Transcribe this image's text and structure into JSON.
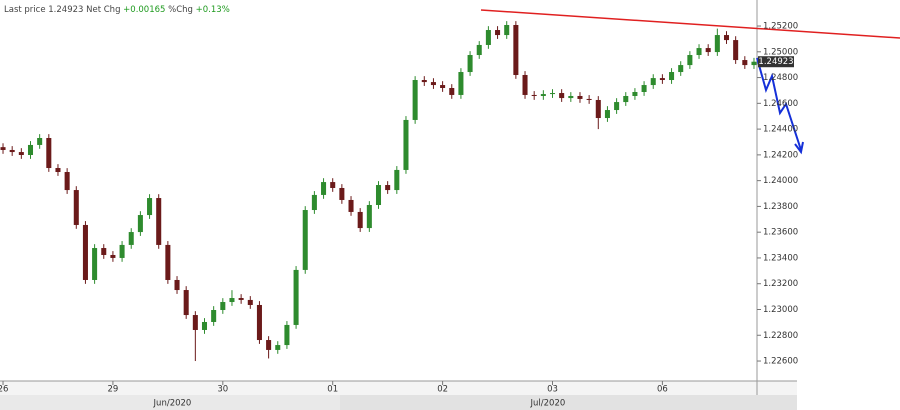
{
  "header": {
    "last_price_label": "Last price",
    "last_price": "1.24923",
    "net_chg_label": "Net Chg",
    "net_chg": "+0.00165",
    "pct_chg_label": "%Chg",
    "pct_chg": "+0.13%"
  },
  "chart_data": {
    "type": "candlestick",
    "up_color": "#2e8b2e",
    "down_color": "#6b1a1a",
    "candles": [
      [
        1.2426,
        1.2429,
        1.24208,
        1.24238
      ],
      [
        1.24238,
        1.24268,
        1.24192,
        1.24222
      ],
      [
        1.24222,
        1.24252,
        1.24169,
        1.24199
      ],
      [
        1.24199,
        1.24307,
        1.24169,
        1.24277
      ],
      [
        1.24277,
        1.24361,
        1.24247,
        1.24331
      ],
      [
        1.24331,
        1.24361,
        1.24068,
        1.24098
      ],
      [
        1.24098,
        1.24128,
        1.24037,
        1.24067
      ],
      [
        1.24067,
        1.24097,
        1.23897,
        1.23927
      ],
      [
        1.23927,
        1.23957,
        1.23626,
        1.23656
      ],
      [
        1.23656,
        1.23686,
        1.23199,
        1.23229
      ],
      [
        1.23229,
        1.23507,
        1.23199,
        1.23477
      ],
      [
        1.23477,
        1.23507,
        1.23393,
        1.23423
      ],
      [
        1.23423,
        1.23453,
        1.2337,
        1.234
      ],
      [
        1.234,
        1.23531,
        1.2337,
        1.23501
      ],
      [
        1.23501,
        1.23631,
        1.23471,
        1.23601
      ],
      [
        1.23601,
        1.23763,
        1.23571,
        1.23733
      ],
      [
        1.23733,
        1.23895,
        1.23703,
        1.23865
      ],
      [
        1.23865,
        1.23895,
        1.23471,
        1.23501
      ],
      [
        1.23501,
        1.23531,
        1.23199,
        1.23229
      ],
      [
        1.23229,
        1.23259,
        1.23121,
        1.23151
      ],
      [
        1.23151,
        1.23181,
        1.22927,
        1.22957
      ],
      [
        1.22957,
        1.22987,
        1.226,
        1.22841
      ],
      [
        1.22841,
        1.22933,
        1.22811,
        1.22903
      ],
      [
        1.22903,
        1.23026,
        1.22873,
        1.22996
      ],
      [
        1.22996,
        1.23088,
        1.22966,
        1.23058
      ],
      [
        1.23058,
        1.2315,
        1.23028,
        1.23089
      ],
      [
        1.23089,
        1.23119,
        1.23044,
        1.23074
      ],
      [
        1.23074,
        1.23104,
        1.23005,
        1.23035
      ],
      [
        1.23035,
        1.23065,
        1.22733,
        1.22763
      ],
      [
        1.22763,
        1.22793,
        1.2262,
        1.22686
      ],
      [
        1.22686,
        1.22754,
        1.22656,
        1.22724
      ],
      [
        1.22724,
        1.2291,
        1.22694,
        1.2288
      ],
      [
        1.2288,
        1.23337,
        1.2285,
        1.23307
      ],
      [
        1.23307,
        1.23802,
        1.23277,
        1.23772
      ],
      [
        1.23772,
        1.23919,
        1.23742,
        1.23889
      ],
      [
        1.23889,
        1.24019,
        1.23859,
        1.23989
      ],
      [
        1.23989,
        1.24019,
        1.23913,
        1.23943
      ],
      [
        1.23943,
        1.23973,
        1.2382,
        1.2385
      ],
      [
        1.2385,
        1.2388,
        1.23727,
        1.23757
      ],
      [
        1.23757,
        1.23787,
        1.23602,
        1.23632
      ],
      [
        1.23632,
        1.23841,
        1.23602,
        1.23811
      ],
      [
        1.23811,
        1.23996,
        1.23781,
        1.23966
      ],
      [
        1.23966,
        1.23996,
        1.23897,
        1.23927
      ],
      [
        1.23927,
        1.24113,
        1.23897,
        1.24083
      ],
      [
        1.24083,
        1.24501,
        1.24053,
        1.24471
      ],
      [
        1.24471,
        1.24811,
        1.24441,
        1.24781
      ],
      [
        1.24781,
        1.24811,
        1.24735,
        1.24765
      ],
      [
        1.24765,
        1.24795,
        1.24712,
        1.24742
      ],
      [
        1.24742,
        1.24772,
        1.24689,
        1.24719
      ],
      [
        1.24719,
        1.24749,
        1.24635,
        1.24665
      ],
      [
        1.24665,
        1.24873,
        1.24635,
        1.24843
      ],
      [
        1.24843,
        1.25005,
        1.24813,
        1.24975
      ],
      [
        1.24975,
        1.25083,
        1.24945,
        1.25053
      ],
      [
        1.25053,
        1.25199,
        1.25023,
        1.25169
      ],
      [
        1.25169,
        1.25199,
        1.251,
        1.2513
      ],
      [
        1.2513,
        1.25238,
        1.251,
        1.25208
      ],
      [
        1.25208,
        1.25238,
        1.2479,
        1.2482
      ],
      [
        1.2482,
        1.2485,
        1.24635,
        1.24665
      ],
      [
        1.24665,
        1.24695,
        1.24627,
        1.24657
      ],
      [
        1.24657,
        1.24702,
        1.24627,
        1.24672
      ],
      [
        1.24672,
        1.2471,
        1.24642,
        1.2468
      ],
      [
        1.2468,
        1.2471,
        1.24611,
        1.24641
      ],
      [
        1.24641,
        1.24687,
        1.24611,
        1.24657
      ],
      [
        1.24657,
        1.24687,
        1.24604,
        1.24634
      ],
      [
        1.24634,
        1.24664,
        1.24596,
        1.24626
      ],
      [
        1.24626,
        1.24656,
        1.244,
        1.24486
      ],
      [
        1.24486,
        1.24578,
        1.24456,
        1.24548
      ],
      [
        1.24548,
        1.2464,
        1.24518,
        1.2461
      ],
      [
        1.2461,
        1.24687,
        1.2458,
        1.24657
      ],
      [
        1.24657,
        1.24718,
        1.24627,
        1.24688
      ],
      [
        1.24688,
        1.24772,
        1.24658,
        1.24742
      ],
      [
        1.24742,
        1.24826,
        1.24712,
        1.24796
      ],
      [
        1.24796,
        1.24826,
        1.24751,
        1.24781
      ],
      [
        1.24781,
        1.24873,
        1.24751,
        1.24843
      ],
      [
        1.24843,
        1.24927,
        1.24813,
        1.24897
      ],
      [
        1.24897,
        1.25005,
        1.24867,
        1.24975
      ],
      [
        1.24975,
        1.25059,
        1.24945,
        1.25029
      ],
      [
        1.25029,
        1.25059,
        1.24968,
        1.24998
      ],
      [
        1.24998,
        1.2518,
        1.24968,
        1.2513
      ],
      [
        1.2513,
        1.2516,
        1.25061,
        1.25091
      ],
      [
        1.25091,
        1.25121,
        1.24906,
        1.24936
      ],
      [
        1.24936,
        1.24966,
        1.24867,
        1.24897
      ],
      [
        1.24897,
        1.24953,
        1.24867,
        1.24923
      ]
    ],
    "xlim": [
      -0.33,
      82.33
    ],
    "xticks": [
      {
        "value": 0,
        "label": "26"
      },
      {
        "value": 12,
        "label": "29"
      },
      {
        "value": 24,
        "label": "30"
      },
      {
        "value": 36,
        "label": "01"
      },
      {
        "value": 48,
        "label": "02"
      },
      {
        "value": 60,
        "label": "03"
      },
      {
        "value": 72,
        "label": "06"
      }
    ],
    "month_labels": [
      {
        "value": 18.5,
        "label": "Jun/2020"
      },
      {
        "value": 59.5,
        "label": "Jul/2020"
      }
    ],
    "ylim": [
      1.22445,
      1.25402
    ],
    "yticks": [
      {
        "value": 1.226,
        "label": "1.22600"
      },
      {
        "value": 1.228,
        "label": "1.22800"
      },
      {
        "value": 1.23,
        "label": "1.23000"
      },
      {
        "value": 1.232,
        "label": "1.23200"
      },
      {
        "value": 1.234,
        "label": "1.23400"
      },
      {
        "value": 1.236,
        "label": "1.23600"
      },
      {
        "value": 1.238,
        "label": "1.23800"
      },
      {
        "value": 1.24,
        "label": "1.24000"
      },
      {
        "value": 1.242,
        "label": "1.24200"
      },
      {
        "value": 1.244,
        "label": "1.24400"
      },
      {
        "value": 1.246,
        "label": "1.24600"
      },
      {
        "value": 1.248,
        "label": "1.24800"
      },
      {
        "value": 1.25,
        "label": "1.25000"
      },
      {
        "value": 1.252,
        "label": "1.25200"
      }
    ],
    "grid": false
  }
}
